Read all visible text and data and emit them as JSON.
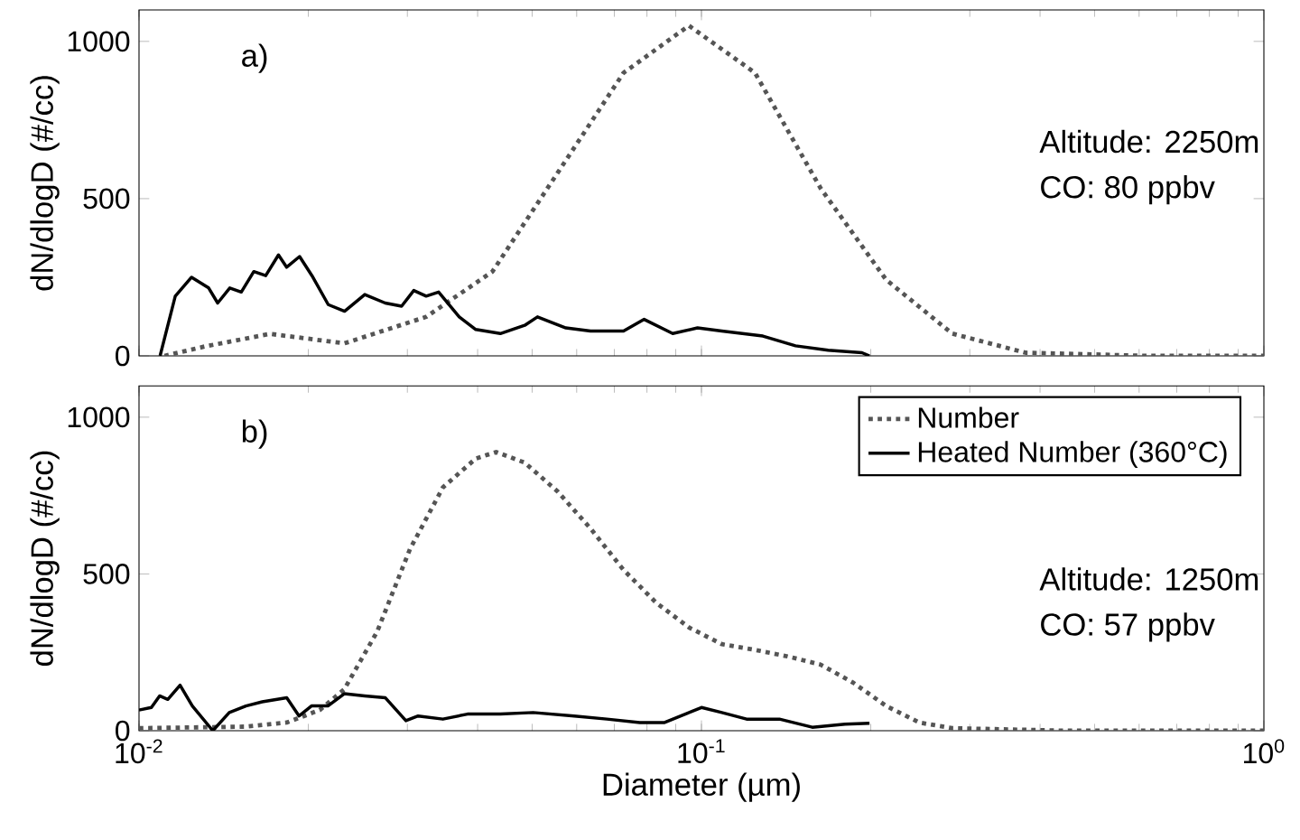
{
  "chart_data": [
    {
      "type": "line",
      "log": "x",
      "tick_labels": "y",
      "ylabel": "dN/dlogD (#/cc)",
      "annotations": [
        "a)",
        "Altitude: 2250m",
        "CO: 80 ppbv"
      ],
      "xlim": [
        0.01,
        1
      ],
      "xticks": [
        {
          "value": 0.01,
          "label": null
        },
        {
          "value": 0.1,
          "label": null
        },
        {
          "value": 1,
          "label": null
        }
      ],
      "ylim": [
        0,
        1100
      ],
      "yticks": [
        0,
        500,
        1000
      ],
      "series": [
        {
          "color": "#555555",
          "line_style": "dotted",
          "x": [
            0.0111,
            0.0131,
            0.0171,
            0.0232,
            0.0324,
            0.0425,
            0.0556,
            0.0727,
            0.095,
            0.1245,
            0.163,
            0.213,
            0.279,
            0.377,
            0.625,
            1.0
          ],
          "values": [
            0,
            30,
            70,
            40,
            124,
            268,
            584,
            900,
            1050,
            900,
            532,
            242,
            71,
            10,
            0,
            0
          ]
        },
        {
          "color": "#000000",
          "line_style": "solid",
          "x": [
            0.0109,
            0.0116,
            0.0124,
            0.0133,
            0.0138,
            0.0145,
            0.0152,
            0.016,
            0.0168,
            0.0177,
            0.0183,
            0.0193,
            0.0203,
            0.0217,
            0.0232,
            0.0252,
            0.0274,
            0.0293,
            0.0308,
            0.0324,
            0.0341,
            0.0371,
            0.0397,
            0.0439,
            0.0485,
            0.0511,
            0.0574,
            0.0635,
            0.0727,
            0.0791,
            0.0889,
            0.0984,
            0.1087,
            0.1286,
            0.147,
            0.168,
            0.193,
            0.199
          ],
          "values": [
            0,
            190,
            250,
            216,
            168,
            216,
            203,
            268,
            255,
            321,
            282,
            316,
            255,
            163,
            142,
            195,
            168,
            158,
            208,
            190,
            203,
            124,
            84,
            71,
            97,
            124,
            89,
            79,
            79,
            116,
            71,
            89,
            79,
            63,
            32,
            18,
            10,
            0
          ]
        }
      ]
    },
    {
      "type": "line",
      "log": "x",
      "xlabel": "Diameter (µm)",
      "ylabel": "dN/dlogD (#/cc)",
      "annotations": [
        "b)",
        "Altitude: 1250m",
        "CO: 57 ppbv"
      ],
      "legend": "top right",
      "xlim": [
        0.01,
        1
      ],
      "xticks": [
        {
          "value": 0.01,
          "label": "10$^{-2}$"
        },
        {
          "value": 0.1,
          "label": "10$^{-1}$"
        },
        {
          "value": 1,
          "label": "10$^{0}$"
        }
      ],
      "ylim": [
        0,
        1100
      ],
      "yticks": [
        0,
        500,
        1000
      ],
      "series": [
        {
          "name": "Number",
          "color": "#555555",
          "line_style": "dotted",
          "x": [
            0.01,
            0.01549,
            0.01831,
            0.02096,
            0.02317,
            0.02651,
            0.03032,
            0.0347,
            0.0397,
            0.04315,
            0.0485,
            0.0555,
            0.0635,
            0.0727,
            0.0831,
            0.0951,
            0.1087,
            0.1244,
            0.1423,
            0.1628,
            0.1862,
            0.213,
            0.244,
            0.279,
            0.446,
            1.0
          ],
          "values": [
            8,
            13,
            26,
            66,
            132,
            316,
            579,
            776,
            868,
            889,
            855,
            763,
            645,
            513,
            408,
            329,
            276,
            258,
            237,
            211,
            153,
            79,
            26,
            8,
            0,
            0
          ]
        },
        {
          "name": "Heated Number (360°C)",
          "color": "#000000",
          "line_style": "solid",
          "x": [
            0.01,
            0.01052,
            0.01088,
            0.01125,
            0.01183,
            0.01244,
            0.01353,
            0.01447,
            0.01549,
            0.01656,
            0.01831,
            0.01926,
            0.02026,
            0.02167,
            0.02317,
            0.0252,
            0.02742,
            0.02982,
            0.03135,
            0.0347,
            0.03837,
            0.0439,
            0.0502,
            0.0594,
            0.0679,
            0.0777,
            0.086,
            0.1,
            0.1087,
            0.1203,
            0.1376,
            0.1574,
            0.18,
            0.199
          ],
          "values": [
            66,
            74,
            111,
            100,
            145,
            79,
            0,
            58,
            79,
            92,
            105,
            47,
            79,
            79,
            118,
            111,
            105,
            32,
            47,
            37,
            53,
            53,
            58,
            47,
            37,
            26,
            26,
            74,
            58,
            37,
            37,
            11,
            21,
            24
          ]
        }
      ]
    }
  ]
}
